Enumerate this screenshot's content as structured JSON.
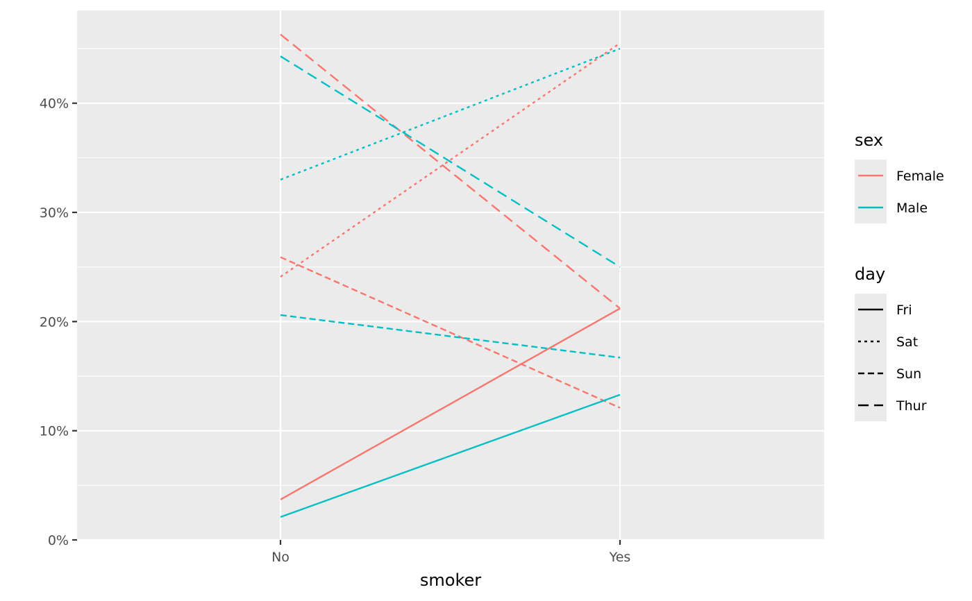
{
  "chart_data": {
    "type": "line",
    "xlabel": "smoker",
    "ylabel": "",
    "categories": [
      "No",
      "Yes"
    ],
    "ylim": [
      0,
      0.485
    ],
    "yticks": [
      {
        "value": 0,
        "label": "0%"
      },
      {
        "value": 0.1,
        "label": "10%"
      },
      {
        "value": 0.2,
        "label": "20%"
      },
      {
        "value": 0.3,
        "label": "30%"
      },
      {
        "value": 0.4,
        "label": "40%"
      }
    ],
    "grid": true,
    "legend_position": "right",
    "series": [
      {
        "name": "Female Fri",
        "sex": "Female",
        "day": "Fri",
        "values": [
          0.037,
          0.212
        ]
      },
      {
        "name": "Female Sat",
        "sex": "Female",
        "day": "Sat",
        "values": [
          0.241,
          0.455
        ]
      },
      {
        "name": "Female Sun",
        "sex": "Female",
        "day": "Sun",
        "values": [
          0.259,
          0.121
        ]
      },
      {
        "name": "Female Thur",
        "sex": "Female",
        "day": "Thur",
        "values": [
          0.463,
          0.212
        ]
      },
      {
        "name": "Male Fri",
        "sex": "Male",
        "day": "Fri",
        "values": [
          0.021,
          0.133
        ]
      },
      {
        "name": "Male Sat",
        "sex": "Male",
        "day": "Sat",
        "values": [
          0.33,
          0.45
        ]
      },
      {
        "name": "Male Sun",
        "sex": "Male",
        "day": "Sun",
        "values": [
          0.206,
          0.167
        ]
      },
      {
        "name": "Male Thur",
        "sex": "Male",
        "day": "Thur",
        "values": [
          0.443,
          0.25
        ]
      }
    ],
    "colors": {
      "Female": "#F8766D",
      "Male": "#00BFC4"
    },
    "panel_background": "#EBEBEB",
    "legends": [
      {
        "title": "sex",
        "type": "color",
        "entries": [
          {
            "label": "Female",
            "key": "Female"
          },
          {
            "label": "Male",
            "key": "Male"
          }
        ]
      },
      {
        "title": "day",
        "type": "linetype",
        "entries": [
          {
            "label": "Fri",
            "key": "Fri"
          },
          {
            "label": "Sat",
            "key": "Sat"
          },
          {
            "label": "Sun",
            "key": "Sun"
          },
          {
            "label": "Thur",
            "key": "Thur"
          }
        ]
      }
    ]
  }
}
